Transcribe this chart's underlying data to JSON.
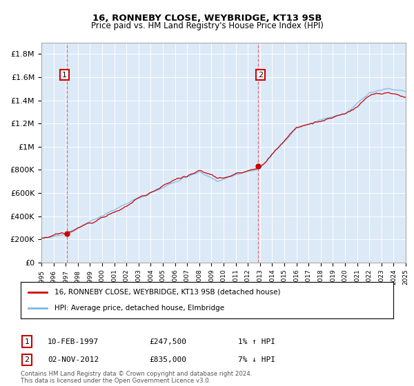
{
  "title1": "16, RONNEBY CLOSE, WEYBRIDGE, KT13 9SB",
  "title2": "Price paid vs. HM Land Registry's House Price Index (HPI)",
  "background_color": "#dce9f7",
  "plot_bg_color": "#dce9f7",
  "hpi_color": "#7ab8e8",
  "price_color": "#cc0000",
  "ylim": [
    0,
    1900000
  ],
  "yticks": [
    0,
    200000,
    400000,
    600000,
    800000,
    1000000,
    1200000,
    1400000,
    1600000,
    1800000
  ],
  "ytick_labels": [
    "£0",
    "£200K",
    "£400K",
    "£600K",
    "£800K",
    "£1M",
    "£1.2M",
    "£1.4M",
    "£1.6M",
    "£1.8M"
  ],
  "xmin_year": 1995,
  "xmax_year": 2025,
  "xtick_years": [
    1995,
    1996,
    1997,
    1998,
    1999,
    2000,
    2001,
    2002,
    2003,
    2004,
    2005,
    2006,
    2007,
    2008,
    2009,
    2010,
    2011,
    2012,
    2013,
    2014,
    2015,
    2016,
    2017,
    2018,
    2019,
    2020,
    2021,
    2022,
    2023,
    2024,
    2025
  ],
  "sale1_year": 1997.11,
  "sale1_price": 247500,
  "sale2_year": 2012.84,
  "sale2_price": 835000,
  "legend_line1": "16, RONNEBY CLOSE, WEYBRIDGE, KT13 9SB (detached house)",
  "legend_line2": "HPI: Average price, detached house, Elmbridge",
  "annotation1_label": "1",
  "annotation1_date": "10-FEB-1997",
  "annotation1_price": "£247,500",
  "annotation1_hpi": "1% ↑ HPI",
  "annotation2_label": "2",
  "annotation2_date": "02-NOV-2012",
  "annotation2_price": "£835,000",
  "annotation2_hpi": "7% ↓ HPI",
  "footer": "Contains HM Land Registry data © Crown copyright and database right 2024.\nThis data is licensed under the Open Government Licence v3.0."
}
